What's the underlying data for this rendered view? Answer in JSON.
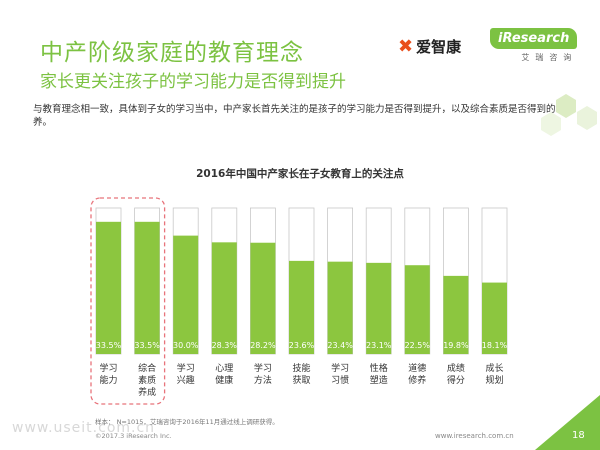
{
  "header": {
    "title": "中产阶级家庭的教育理念",
    "subtitle": "家长更关注孩子的学习能力是否得到提升",
    "intro": "与教育理念相一致，具体到子女的学习当中，中产家长首先关注的是孩子的学习能力是否得到提升，以及综合素质是否得到的培养。"
  },
  "logos": {
    "aizhikang": "爱智康",
    "iresearch": "iResearch",
    "iresearch_sub": "艾瑞咨询"
  },
  "colors": {
    "brand_green": "#7cc242",
    "bar_fill": "#8cc63f",
    "highlight_outline": "#e8737b",
    "logo_orange": "#e94e1b"
  },
  "chart_data": {
    "type": "bar",
    "title": "2016年中国中产家长在子女教育上的关注点",
    "categories": [
      "学习\n能力",
      "综合\n素质\n养成",
      "学习\n兴趣",
      "心理\n健康",
      "学习\n方法",
      "技能\n获取",
      "学习\n习惯",
      "性格\n塑造",
      "道德\n修养",
      "成绩\n得分",
      "成长\n规划"
    ],
    "values": [
      33.5,
      33.5,
      30.0,
      28.3,
      28.2,
      23.6,
      23.4,
      23.1,
      22.5,
      19.8,
      18.1
    ],
    "value_labels": [
      "33.5%",
      "33.5%",
      "30.0%",
      "28.3%",
      "28.2%",
      "23.6%",
      "23.4%",
      "23.1%",
      "22.5%",
      "19.8%",
      "18.1%"
    ],
    "ylim": [
      0,
      37
    ],
    "highlighted_categories": [
      0,
      1
    ],
    "grid": false,
    "legend": "none"
  },
  "footer": {
    "source": "样本： N=1015，艾瑞咨询于2016年11月通过线上调研获得。",
    "copyright": "©2017.3  iResearch Inc.",
    "website": "www.iresearch.com.cn",
    "page": "18",
    "watermark": "www.useit.com.cn"
  }
}
